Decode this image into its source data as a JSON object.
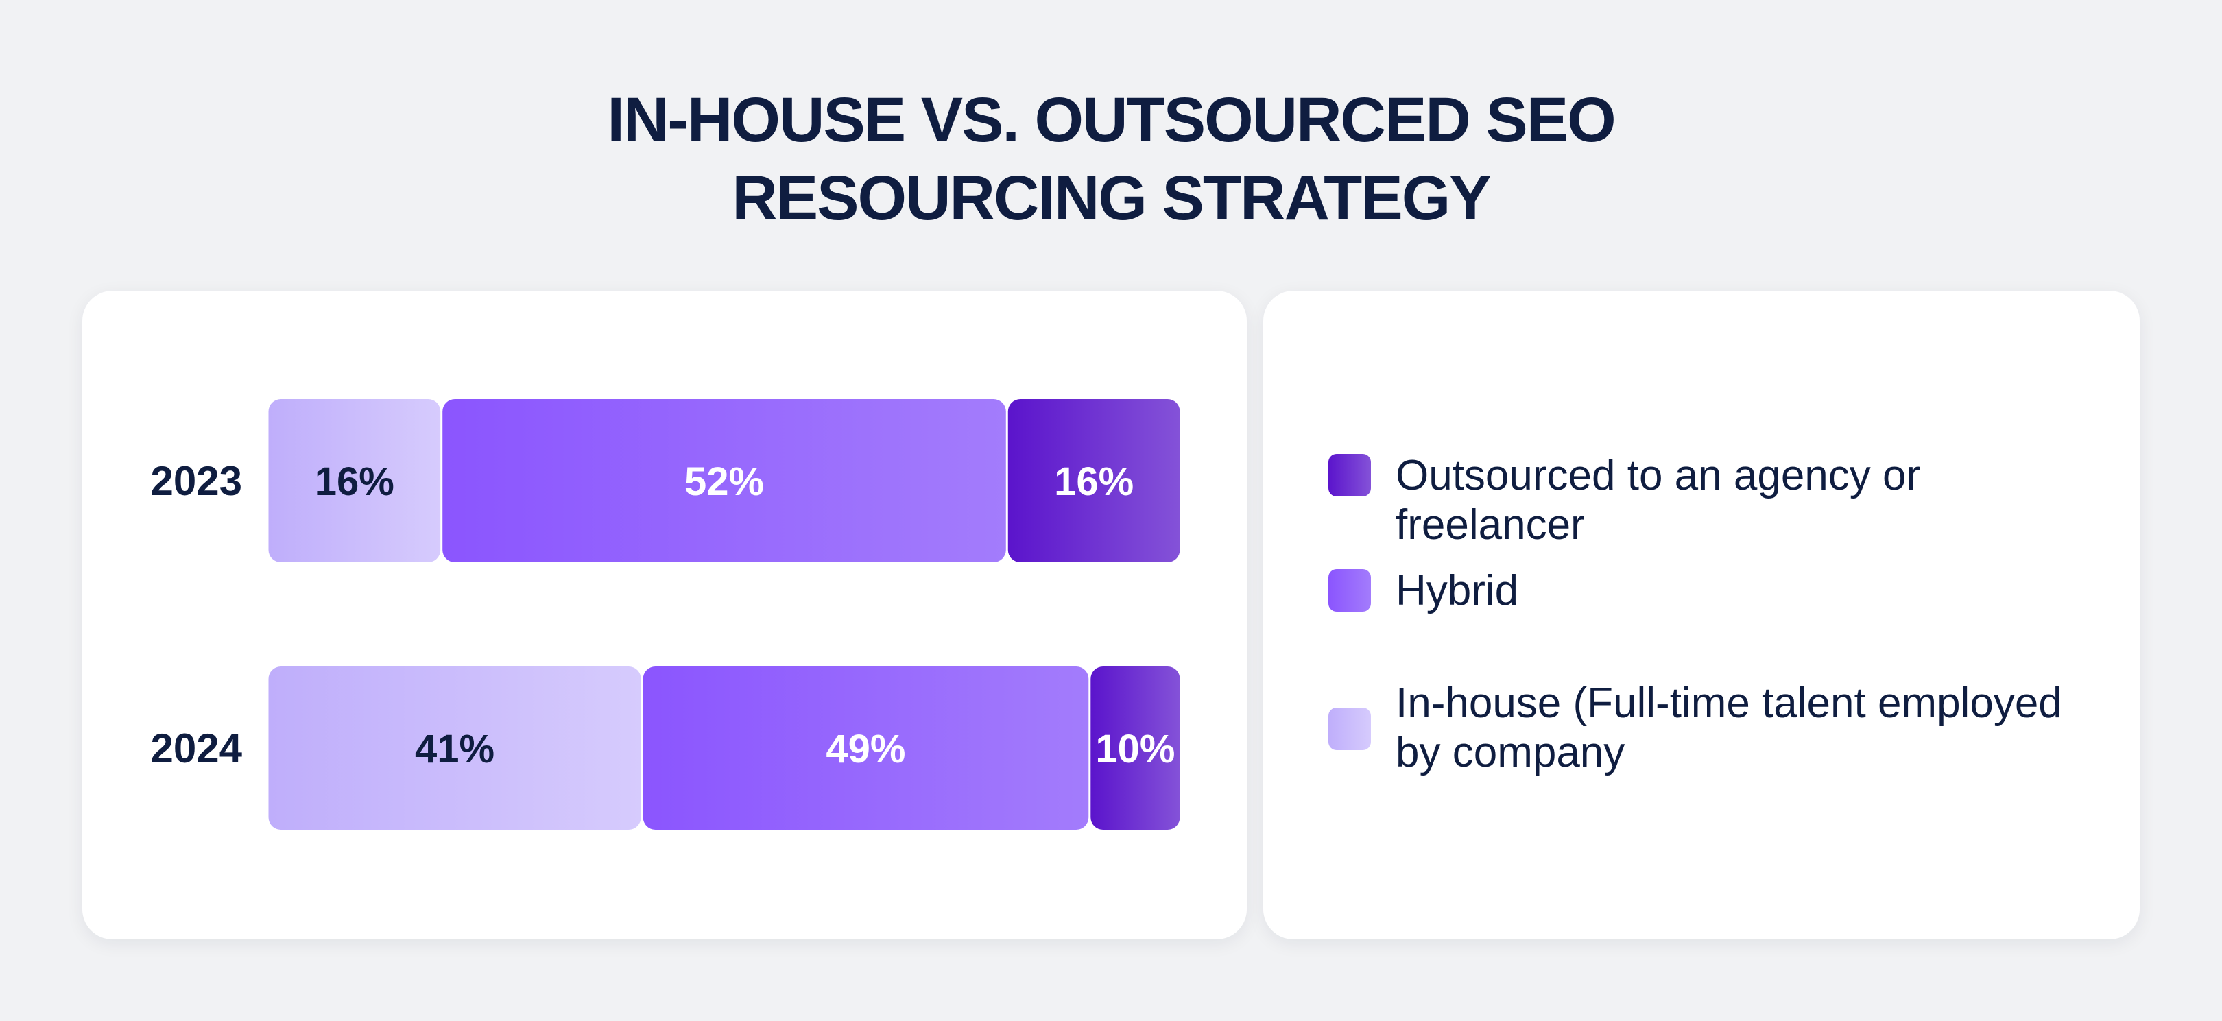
{
  "title_lines": [
    "IN-HOUSE VS. OUTSOURCED SEO",
    "RESOURCING STRATEGY"
  ],
  "chart_data": {
    "type": "bar",
    "orientation": "horizontal",
    "stacked": true,
    "title": "IN-HOUSE VS. OUTSOURCED SEO RESOURCING STRATEGY",
    "categories": [
      "2023",
      "2024"
    ],
    "series": [
      {
        "name": "In-house (Full-time talent employed by company",
        "values": [
          16,
          41
        ],
        "labels": [
          "16%",
          "41%"
        ],
        "color": "#cbbcfc",
        "label_color": "#0f1d40"
      },
      {
        "name": "Hybrid",
        "values": [
          52,
          49
        ],
        "labels": [
          "52%",
          "49%"
        ],
        "color": "#9a6bfd",
        "label_color": "#ffffff"
      },
      {
        "name": "Outsourced to an agency or freelancer",
        "values": [
          16,
          10
        ],
        "labels": [
          "16%",
          "10%"
        ],
        "color": "#6a21d6",
        "label_color": "#ffffff"
      }
    ],
    "legend_order": [
      "Outsourced to an agency or freelancer",
      "Hybrid",
      "In-house (Full-time talent employed by company"
    ],
    "legend_placement": "right",
    "grid": false
  },
  "legend": {
    "items": [
      {
        "label": "Outsourced to an agency or freelancer",
        "color": "#6a21d6"
      },
      {
        "label": "Hybrid",
        "color": "#9a6bfd"
      },
      {
        "label": "In-house (Full-time talent employed by company",
        "color": "#cbbcfc"
      }
    ]
  }
}
